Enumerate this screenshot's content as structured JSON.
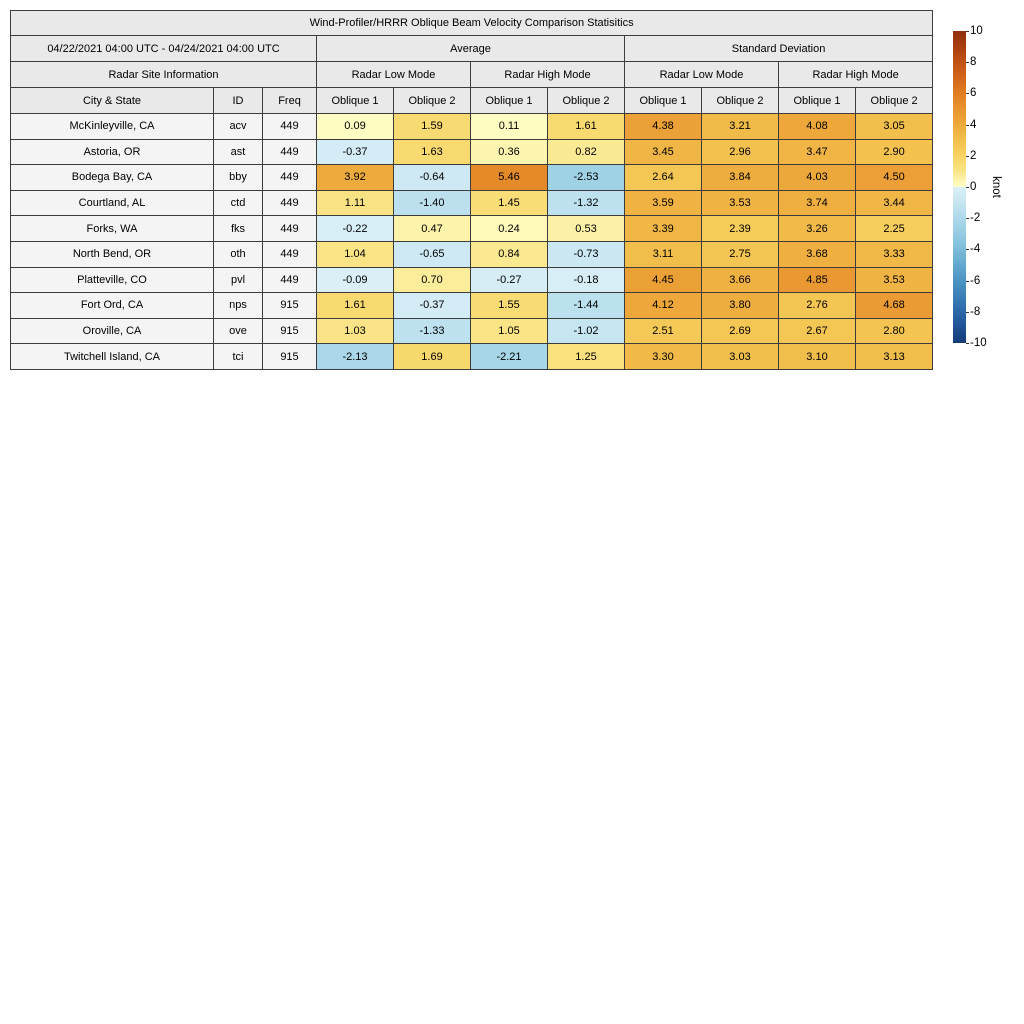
{
  "chart_data": {
    "type": "table",
    "title": "Wind-Profiler/HRRR Oblique Beam Velocity Comparison Statisitics",
    "date_range": "04/22/2021 04:00 UTC - 04/24/2021 04:00 UTC",
    "group_headers": [
      "Average",
      "Standard Deviation"
    ],
    "site_info_header": "Radar Site Information",
    "mode_headers": [
      "Radar Low Mode",
      "Radar High Mode",
      "Radar Low Mode",
      "Radar High Mode"
    ],
    "column_headers": [
      "City & State",
      "ID",
      "Freq",
      "Oblique 1",
      "Oblique 2",
      "Oblique 1",
      "Oblique 2",
      "Oblique 1",
      "Oblique 2",
      "Oblique 1",
      "Oblique 2"
    ],
    "rows": [
      {
        "city": "McKinleyville, CA",
        "id": "acv",
        "freq": "449",
        "values": [
          0.09,
          1.59,
          0.11,
          1.61,
          4.38,
          3.21,
          4.08,
          3.05
        ]
      },
      {
        "city": "Astoria, OR",
        "id": "ast",
        "freq": "449",
        "values": [
          -0.37,
          1.63,
          0.36,
          0.82,
          3.45,
          2.96,
          3.47,
          2.9
        ]
      },
      {
        "city": "Bodega Bay, CA",
        "id": "bby",
        "freq": "449",
        "values": [
          3.92,
          -0.64,
          5.46,
          -2.53,
          2.64,
          3.84,
          4.03,
          4.5
        ]
      },
      {
        "city": "Courtland, AL",
        "id": "ctd",
        "freq": "449",
        "values": [
          1.11,
          -1.4,
          1.45,
          -1.32,
          3.59,
          3.53,
          3.74,
          3.44
        ]
      },
      {
        "city": "Forks, WA",
        "id": "fks",
        "freq": "449",
        "values": [
          -0.22,
          0.47,
          0.24,
          0.53,
          3.39,
          2.39,
          3.26,
          2.25
        ]
      },
      {
        "city": "North Bend, OR",
        "id": "oth",
        "freq": "449",
        "values": [
          1.04,
          -0.65,
          0.84,
          -0.73,
          3.11,
          2.75,
          3.68,
          3.33
        ]
      },
      {
        "city": "Platteville, CO",
        "id": "pvl",
        "freq": "449",
        "values": [
          -0.09,
          0.7,
          -0.27,
          -0.18,
          4.45,
          3.66,
          4.85,
          3.53
        ]
      },
      {
        "city": "Fort Ord, CA",
        "id": "nps",
        "freq": "915",
        "values": [
          1.61,
          -0.37,
          1.55,
          -1.44,
          4.12,
          3.8,
          2.76,
          4.68
        ]
      },
      {
        "city": "Oroville, CA",
        "id": "ove",
        "freq": "915",
        "values": [
          1.03,
          -1.33,
          1.05,
          -1.02,
          2.51,
          2.69,
          2.67,
          2.8
        ]
      },
      {
        "city": "Twitchell Island, CA",
        "id": "tci",
        "freq": "915",
        "values": [
          -2.13,
          1.69,
          -2.21,
          1.25,
          3.3,
          3.03,
          3.1,
          3.13
        ]
      }
    ],
    "colorbar": {
      "label": "knot",
      "vmin": -10,
      "vmax": 10,
      "ticks": [
        10,
        8,
        6,
        4,
        2,
        0,
        -2,
        -4,
        -6,
        -8,
        -10
      ],
      "positive_anchors": [
        "#FFFFC8",
        "#FAE588",
        "#F7D362",
        "#F2C04D",
        "#EDA93C",
        "#E9952F",
        "#E17D22",
        "#D2671B",
        "#C05314",
        "#A83E10",
        "#93300E"
      ],
      "negative_anchors": [
        "#DCF0F7",
        "#C6E5F1",
        "#ACD9EA",
        "#96CCE3",
        "#7CBCDA",
        "#62A8CF",
        "#4C94C4",
        "#3A7FB7",
        "#2C68A9",
        "#1F5193",
        "#143C78"
      ]
    },
    "layout": {
      "grid_border_color": "#3c3c3c",
      "header_bg": "#e9e9e9",
      "site_cell_bg": "#f4f4f4"
    }
  }
}
